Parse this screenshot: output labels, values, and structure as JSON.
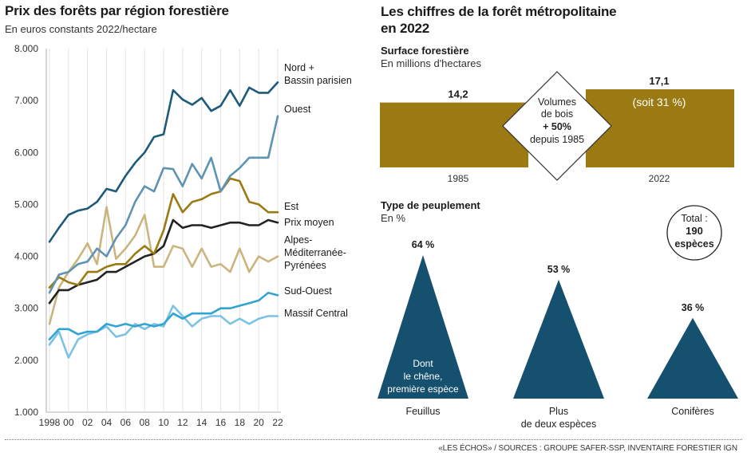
{
  "left_chart": {
    "title": "Prix des forêts par région forestière",
    "subtitle": "En euros constants 2022/hectare"
  },
  "right_panel": {
    "title_line1": "Les chiffres de la forêt métropolitaine",
    "title_line2": "en 2022",
    "surface_title": "Surface forestière",
    "surface_subtitle": "En millions d'hectares",
    "volume_line1": "Volumes",
    "volume_line2": "de bois",
    "volume_line3": "+ 50%",
    "volume_line4": "depuis 1985",
    "peuplement_title": "Type de peuplement",
    "peuplement_subtitle": "En %",
    "total_line1": "Total :",
    "total_line2": "190",
    "total_line3": "espèces",
    "feuillus_note_line1": "Dont",
    "feuillus_note_line2": "le chêne,",
    "feuillus_note_line3": "première espèce"
  },
  "source": "«LES ÉCHOS» / SOURCES : GROUPE SAFER-SSP, INVENTAIRE FORESTIER IGN",
  "colors": {
    "dark_blue": "#1e5a7a",
    "steel_blue": "#5f93b3",
    "gold_dark": "#9b7a14",
    "black": "#222222",
    "tan": "#cbb57f",
    "light_blue": "#32a4d2",
    "sky_blue": "#7cc3e2",
    "olive_bar": "#9b7a14",
    "triangle": "#16506f"
  },
  "chart_data": [
    {
      "type": "line",
      "title": "Prix des forêts par région forestière",
      "subtitle": "En euros constants 2022/hectare",
      "x": [
        1998,
        1999,
        2000,
        2001,
        2002,
        2003,
        2004,
        2005,
        2006,
        2007,
        2008,
        2009,
        2010,
        2011,
        2012,
        2013,
        2014,
        2015,
        2016,
        2017,
        2018,
        2019,
        2020,
        2021,
        2022
      ],
      "x_tick_labels": [
        "1998",
        "00",
        "02",
        "04",
        "06",
        "08",
        "10",
        "12",
        "14",
        "16",
        "18",
        "20",
        "22"
      ],
      "y_tick_labels": [
        "1.000",
        "2.000",
        "3.000",
        "4.000",
        "5.000",
        "6.000",
        "7.000",
        "8.000"
      ],
      "ylim": [
        1000,
        8000
      ],
      "grid": "vertical",
      "series": [
        {
          "name": "Nord + Bassin parisien",
          "label_lines": [
            "Nord +",
            "Bassin parisien"
          ],
          "color": "#1e5a7a",
          "values": [
            4280,
            4550,
            4800,
            4880,
            4920,
            5050,
            5300,
            5250,
            5550,
            5800,
            6000,
            6300,
            6350,
            7200,
            7020,
            6920,
            7050,
            6800,
            6900,
            7200,
            6900,
            7250,
            7150,
            7150,
            7350
          ]
        },
        {
          "name": "Ouest",
          "label_lines": [
            "Ouest"
          ],
          "color": "#5f93b3",
          "values": [
            3300,
            3650,
            3700,
            3850,
            3900,
            4150,
            4000,
            4350,
            4600,
            5050,
            5350,
            5250,
            5700,
            5680,
            5350,
            5780,
            5500,
            5900,
            5250,
            5550,
            5700,
            5900,
            5900,
            5900,
            6700
          ]
        },
        {
          "name": "Est",
          "label_lines": [
            "Est"
          ],
          "color": "#9b7a14",
          "values": [
            3400,
            3600,
            3500,
            3450,
            3700,
            3700,
            3800,
            3850,
            3850,
            4050,
            4200,
            4050,
            4500,
            5200,
            4850,
            5050,
            5100,
            5200,
            5250,
            5500,
            5450,
            5050,
            5000,
            4850,
            4850
          ]
        },
        {
          "name": "Prix moyen",
          "label_lines": [
            "Prix moyen"
          ],
          "color": "#222222",
          "values": [
            3100,
            3350,
            3350,
            3450,
            3500,
            3550,
            3700,
            3700,
            3800,
            3900,
            4000,
            4050,
            4200,
            4700,
            4550,
            4600,
            4600,
            4550,
            4600,
            4650,
            4650,
            4600,
            4600,
            4700,
            4650
          ]
        },
        {
          "name": "Alpes-Méditerranée-Pyrénées",
          "label_lines": [
            "Alpes-",
            "Méditerranée-",
            "Pyrénées"
          ],
          "color": "#cbb57f",
          "values": [
            2700,
            3400,
            3700,
            3950,
            4250,
            3850,
            4950,
            3950,
            4150,
            4400,
            4800,
            3800,
            3800,
            4200,
            4150,
            3800,
            4150,
            3800,
            3850,
            3700,
            4150,
            3700,
            4000,
            3900,
            4000
          ]
        },
        {
          "name": "Sud-Ouest",
          "label_lines": [
            "Sud-Ouest"
          ],
          "color": "#32a4d2",
          "values": [
            2400,
            2600,
            2600,
            2500,
            2550,
            2550,
            2700,
            2650,
            2700,
            2650,
            2700,
            2650,
            2700,
            2900,
            2800,
            2900,
            2900,
            2900,
            3000,
            3000,
            3050,
            3100,
            3150,
            3300,
            3250
          ]
        },
        {
          "name": "Massif Central",
          "label_lines": [
            "Massif Central"
          ],
          "color": "#7cc3e2",
          "values": [
            2300,
            2550,
            2050,
            2400,
            2500,
            2550,
            2650,
            2450,
            2500,
            2700,
            2600,
            2700,
            2650,
            3050,
            2850,
            2650,
            2800,
            2850,
            2850,
            2700,
            2800,
            2700,
            2800,
            2850,
            2850
          ]
        }
      ]
    },
    {
      "type": "bar",
      "title": "Surface forestière",
      "subtitle": "En millions d'hectares",
      "categories": [
        "1985",
        "2022"
      ],
      "values": [
        14.2,
        17.1
      ],
      "value_labels": [
        "14,2",
        "17,1"
      ],
      "annotation": "(soit 31 %)",
      "color": "#9b7a14"
    },
    {
      "type": "area",
      "title": "Type de peuplement",
      "subtitle": "En %",
      "categories": [
        "Feuillus",
        "Plus de deux espèces",
        "Conifères"
      ],
      "category_lines": [
        [
          "Feuillus"
        ],
        [
          "Plus",
          "de deux espèces"
        ],
        [
          "Conifères"
        ]
      ],
      "values": [
        64,
        53,
        36
      ],
      "value_labels": [
        "64 %",
        "53 %",
        "36 %"
      ],
      "color": "#16506f"
    }
  ]
}
